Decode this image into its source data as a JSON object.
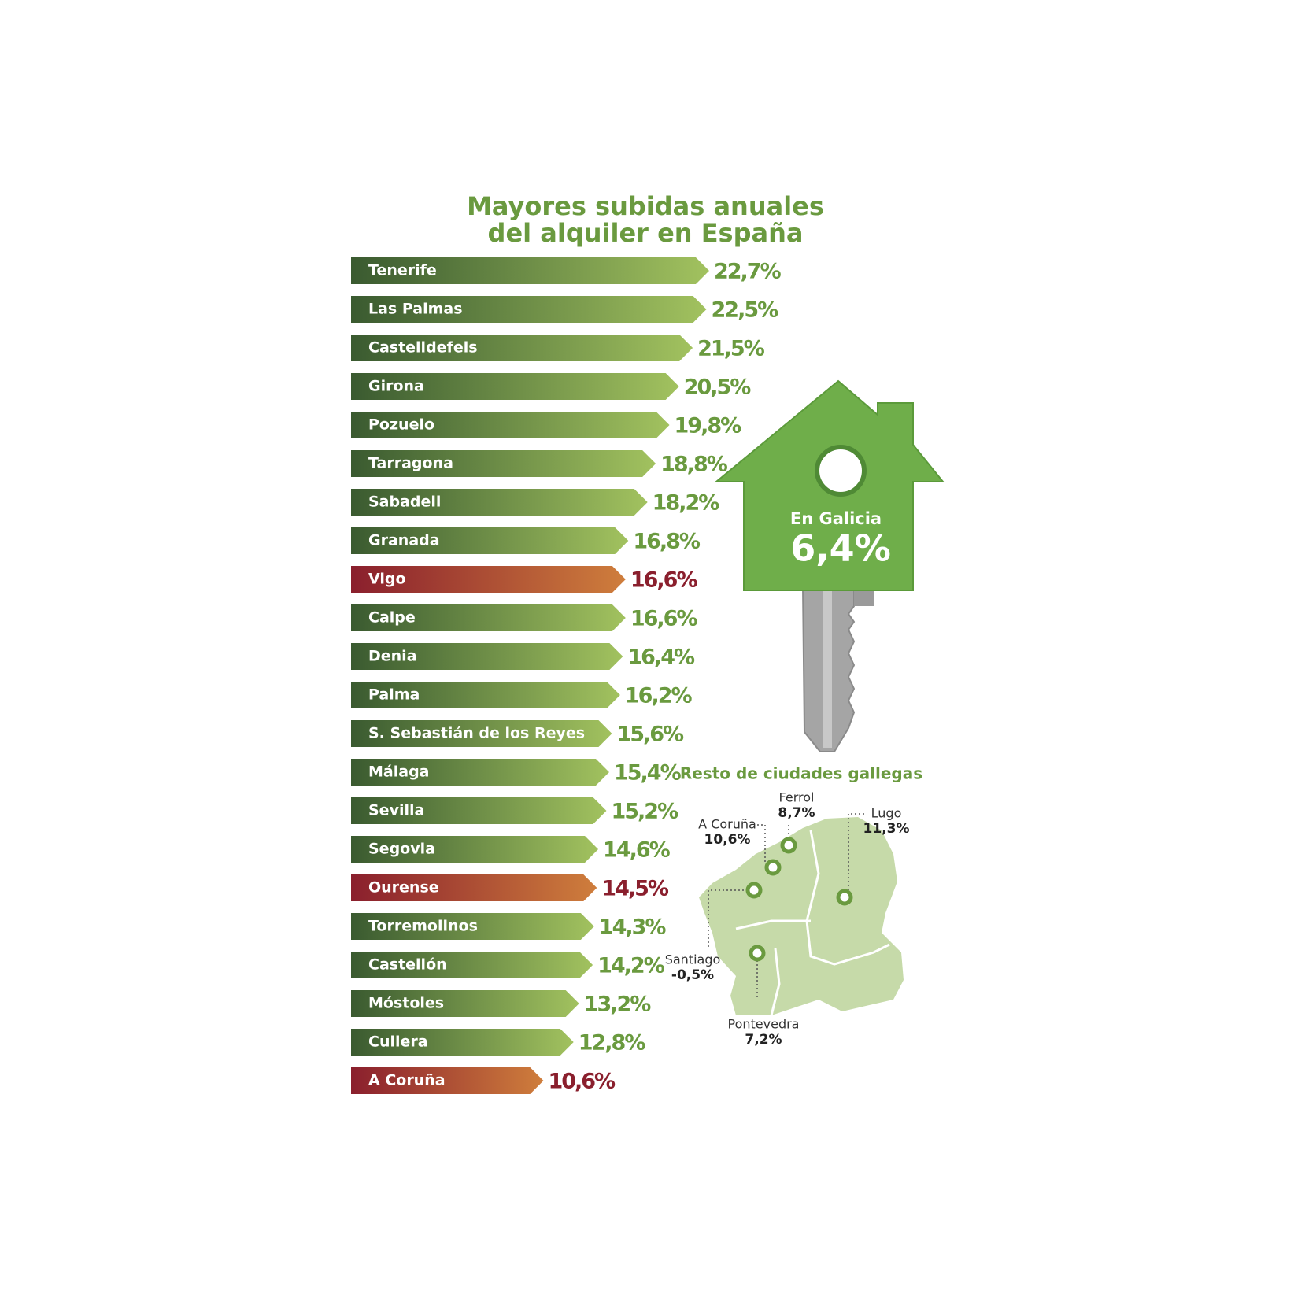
{
  "chart_data": [
    {
      "type": "bar",
      "title": "Mayores subidas anuales del alquiler en España",
      "categories": [
        "Tenerife",
        "Las Palmas",
        "Castelldefels",
        "Girona",
        "Pozuelo",
        "Tarragona",
        "Sabadell",
        "Granada",
        "Vigo",
        "Calpe",
        "Denia",
        "Palma",
        "S. Sebastián de los Reyes",
        "Málaga",
        "Sevilla",
        "Segovia",
        "Ourense",
        "Torremolinos",
        "Castellón",
        "Móstoles",
        "Cullera",
        "A Coruña"
      ],
      "values": [
        22.7,
        22.5,
        21.5,
        20.5,
        19.8,
        18.8,
        18.2,
        16.8,
        16.6,
        16.6,
        16.4,
        16.2,
        15.6,
        15.4,
        15.2,
        14.6,
        14.5,
        14.3,
        14.2,
        13.2,
        12.8,
        10.6
      ],
      "value_labels": [
        "22,7%",
        "22,5%",
        "21,5%",
        "20,5%",
        "19,8%",
        "18,8%",
        "18,2%",
        "16,8%",
        "16,6%",
        "16,6%",
        "16,4%",
        "16,2%",
        "15,6%",
        "15,4%",
        "15,2%",
        "14,6%",
        "14,5%",
        "14,3%",
        "14,2%",
        "13,2%",
        "12,8%",
        "10,6%"
      ],
      "colors": [
        [
          "#3a5a30",
          "#a2c25f",
          "#6a9a3f"
        ],
        [
          "#3a5a30",
          "#a2c25f",
          "#6a9a3f"
        ],
        [
          "#3a5a30",
          "#a2c25f",
          "#6a9a3f"
        ],
        [
          "#3a5a30",
          "#a2c25f",
          "#6a9a3f"
        ],
        [
          "#3a5a30",
          "#a2c25f",
          "#6a9a3f"
        ],
        [
          "#3a5a30",
          "#a2c25f",
          "#6a9a3f"
        ],
        [
          "#3a5a30",
          "#a2c25f",
          "#6a9a3f"
        ],
        [
          "#3a5a30",
          "#a2c25f",
          "#6a9a3f"
        ],
        [
          "#8a1f2d",
          "#cf7e3c",
          "#8a1f2d"
        ],
        [
          "#3a5a30",
          "#a2c25f",
          "#6a9a3f"
        ],
        [
          "#3a5a30",
          "#a2c25f",
          "#6a9a3f"
        ],
        [
          "#3a5a30",
          "#a2c25f",
          "#6a9a3f"
        ],
        [
          "#3a5a30",
          "#a2c25f",
          "#6a9a3f"
        ],
        [
          "#3a5a30",
          "#a2c25f",
          "#6a9a3f"
        ],
        [
          "#3a5a30",
          "#a2c25f",
          "#6a9a3f"
        ],
        [
          "#3a5a30",
          "#a2c25f",
          "#6a9a3f"
        ],
        [
          "#8a1f2d",
          "#cf7e3c",
          "#8a1f2d"
        ],
        [
          "#3a5a30",
          "#a2c25f",
          "#6a9a3f"
        ],
        [
          "#3a5a30",
          "#a2c25f",
          "#6a9a3f"
        ],
        [
          "#3a5a30",
          "#a2c25f",
          "#6a9a3f"
        ],
        [
          "#3a5a30",
          "#a2c25f",
          "#6a9a3f"
        ],
        [
          "#8a1f2d",
          "#cf7e3c",
          "#8a1f2d"
        ]
      ],
      "annotation": {
        "label": "En Galicia",
        "value": 6.4,
        "value_label": "6,4%"
      }
    },
    {
      "type": "map",
      "title": "Resto de ciudades gallegas",
      "color": "#c6daa9",
      "categories": [
        "Ferrol",
        "A Coruña",
        "Lugo",
        "Santiago",
        "Pontevedra"
      ],
      "values": [
        8.7,
        10.6,
        11.3,
        -0.5,
        7.2
      ],
      "value_labels": [
        "8,7%",
        "10,6%",
        "11,3%",
        "-0,5%",
        "7,2%"
      ]
    }
  ]
}
